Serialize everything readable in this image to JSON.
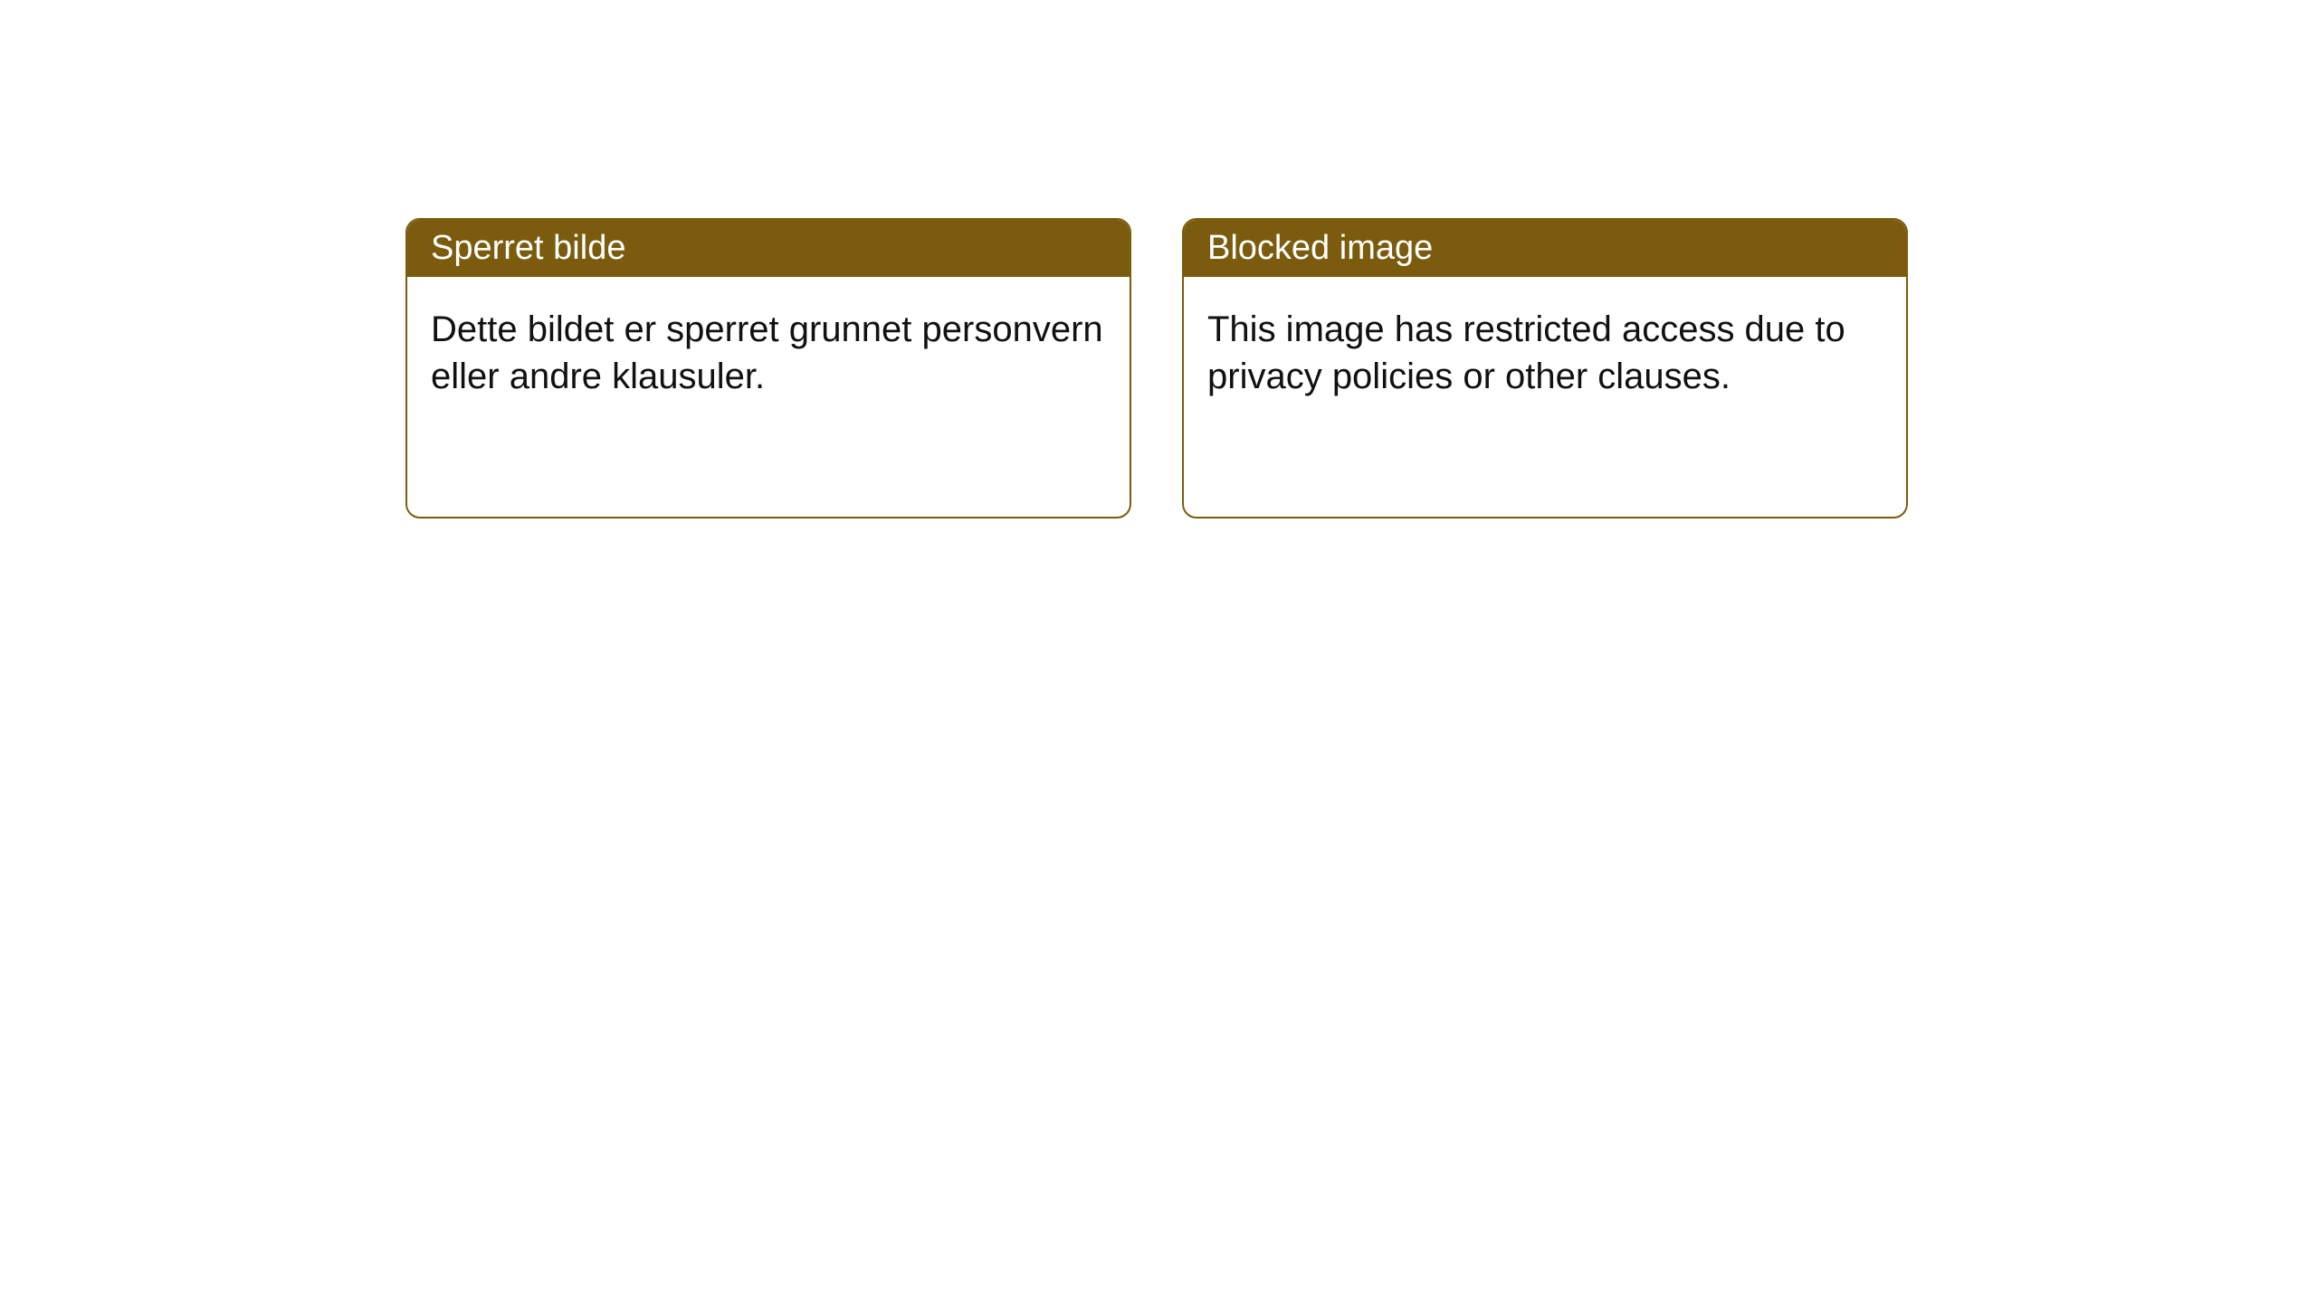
{
  "notices": {
    "left": {
      "title": "Sperret bilde",
      "body": "Dette bildet er sperret grunnet personvern eller andre klausuler."
    },
    "right": {
      "title": "Blocked image",
      "body": "This image has restricted access due to privacy policies or other clauses."
    }
  },
  "style": {
    "header_bg": "#7b5c0f",
    "header_text_color": "#ffffff",
    "border_color": "#7b5c0f",
    "body_text_color": "#111111",
    "page_bg": "#ffffff",
    "border_radius": 16,
    "title_fontsize": 38,
    "body_fontsize": 40
  }
}
